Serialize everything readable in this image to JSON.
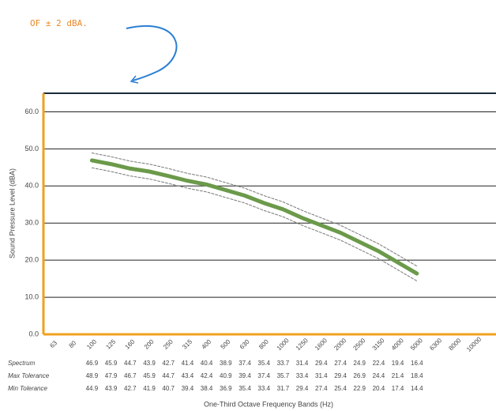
{
  "chart_data": {
    "type": "line",
    "annotation": "OF ± 2 dBA.",
    "ylabel": "Sound Pressure Level (dBA)",
    "xlabel": "One-Third Octave Frequency Bands (Hz)",
    "categories": [
      "63",
      "80",
      "100",
      "125",
      "160",
      "200",
      "250",
      "315",
      "400",
      "500",
      "630",
      "800",
      "1000",
      "1250",
      "1600",
      "2000",
      "2500",
      "3150",
      "4000",
      "5000",
      "6300",
      "8000",
      "10000"
    ],
    "series": [
      {
        "name": "Spectrum",
        "color": "#6b9a4a",
        "dashed": false,
        "values": [
          null,
          null,
          46.9,
          45.9,
          44.7,
          43.9,
          42.7,
          41.4,
          40.4,
          38.9,
          37.4,
          35.4,
          33.7,
          31.4,
          29.4,
          27.4,
          24.9,
          22.4,
          19.4,
          16.4,
          null,
          null,
          null
        ]
      },
      {
        "name": "Max Tolerance",
        "color": "#777777",
        "dashed": true,
        "values": [
          null,
          null,
          48.9,
          47.9,
          46.7,
          45.9,
          44.7,
          43.4,
          42.4,
          40.9,
          39.4,
          37.4,
          35.7,
          33.4,
          31.4,
          29.4,
          26.9,
          24.4,
          21.4,
          18.4,
          null,
          null,
          null
        ]
      },
      {
        "name": "Min Tolerance",
        "color": "#777777",
        "dashed": true,
        "values": [
          null,
          null,
          44.9,
          43.9,
          42.7,
          41.9,
          40.7,
          39.4,
          38.4,
          36.9,
          35.4,
          33.4,
          31.7,
          29.4,
          27.4,
          25.4,
          22.9,
          20.4,
          17.4,
          14.4,
          null,
          null,
          null
        ]
      }
    ],
    "ylim": [
      0,
      65
    ],
    "yticks": [
      {
        "value": 0,
        "label": "0.0"
      },
      {
        "value": 10,
        "label": "10.0"
      },
      {
        "value": 20,
        "label": "20.0"
      },
      {
        "value": 30,
        "label": "30.0"
      },
      {
        "value": 40,
        "label": "40.0"
      },
      {
        "value": 50,
        "label": "50.0"
      },
      {
        "value": 60,
        "label": "60.0"
      }
    ],
    "grid": true
  }
}
